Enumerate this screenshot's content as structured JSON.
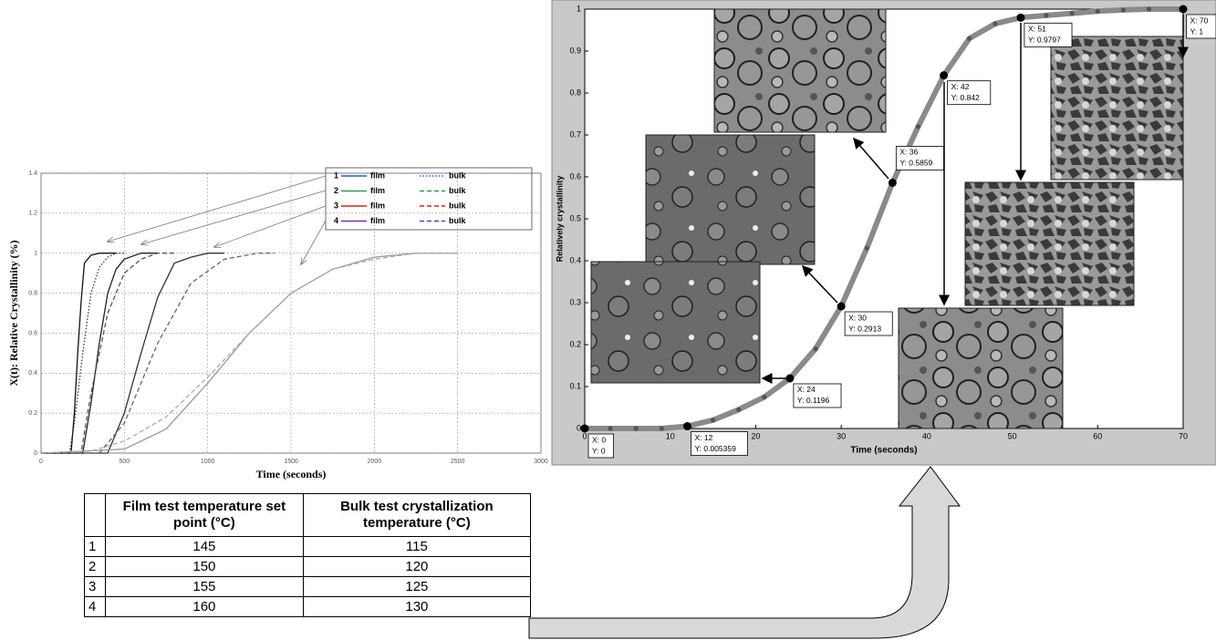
{
  "chart_data": [
    {
      "type": "line",
      "xlabel": "Time (seconds)",
      "ylabel": "X(t): Relative Crystallinity (%)",
      "xlim": [
        0,
        3000
      ],
      "ylim": [
        0,
        1.4
      ],
      "xticks": [
        0,
        500,
        1000,
        1500,
        2000,
        2500,
        3000
      ],
      "yticks": [
        0,
        0.2,
        0.4,
        0.6,
        0.8,
        1,
        1.2,
        1.4
      ],
      "grid": true,
      "legend": "top-right",
      "series": [
        {
          "name": "film",
          "group": "1",
          "color": "#1f5fbf",
          "line_color": "#111111",
          "dash": "solid",
          "x": [
            0,
            180,
            200,
            220,
            240,
            260,
            280,
            300,
            350,
            400,
            450
          ],
          "values": [
            0,
            0,
            0.2,
            0.5,
            0.75,
            0.95,
            0.97,
            0.99,
            1,
            1,
            1
          ]
        },
        {
          "name": "bulk",
          "group": "1",
          "color": "#1f5fbf",
          "line_color": "#333333",
          "dash": "dotted",
          "x": [
            0,
            170,
            200,
            250,
            300,
            350,
            400,
            450,
            500
          ],
          "values": [
            0,
            0,
            0.15,
            0.5,
            0.8,
            0.93,
            0.98,
            1,
            1
          ]
        },
        {
          "name": "film",
          "group": "2",
          "color": "#1fa34a",
          "line_color": "#222222",
          "dash": "solid",
          "x": [
            0,
            250,
            300,
            350,
            400,
            450,
            500,
            600,
            700
          ],
          "values": [
            0,
            0,
            0.25,
            0.55,
            0.8,
            0.92,
            0.97,
            1,
            1
          ]
        },
        {
          "name": "bulk",
          "group": "2",
          "color": "#1fa34a",
          "line_color": "#555555",
          "dash": "dashed",
          "x": [
            0,
            240,
            300,
            400,
            500,
            600,
            700,
            800
          ],
          "values": [
            0,
            0,
            0.3,
            0.7,
            0.9,
            0.97,
            1,
            1
          ]
        },
        {
          "name": "film",
          "group": "3",
          "color": "#e0201b",
          "line_color": "#333333",
          "dash": "solid",
          "x": [
            0,
            400,
            500,
            600,
            700,
            800,
            900,
            1000,
            1100
          ],
          "values": [
            0,
            0,
            0.2,
            0.5,
            0.78,
            0.95,
            0.98,
            1,
            1
          ]
        },
        {
          "name": "bulk",
          "group": "3",
          "color": "#e0201b",
          "line_color": "#666666",
          "dash": "dashed",
          "x": [
            0,
            350,
            500,
            700,
            900,
            1100,
            1300,
            1400
          ],
          "values": [
            0,
            0,
            0.15,
            0.55,
            0.85,
            0.97,
            1,
            1
          ]
        },
        {
          "name": "film",
          "group": "4",
          "color": "#7a2fa8",
          "line_color": "#999999",
          "dash": "solid",
          "x": [
            0,
            500,
            750,
            1000,
            1250,
            1500,
            1750,
            2000,
            2250,
            2500
          ],
          "values": [
            0,
            0.02,
            0.12,
            0.35,
            0.6,
            0.8,
            0.92,
            0.98,
            1,
            1
          ]
        },
        {
          "name": "bulk",
          "group": "4",
          "color": "#7a2fa8",
          "line_color": "#aaaaaa",
          "dash": "dashed",
          "x": [
            0,
            300,
            500,
            750,
            1000,
            1250,
            1500,
            1750,
            2000,
            2250,
            2500
          ],
          "values": [
            0,
            0.01,
            0.06,
            0.18,
            0.38,
            0.6,
            0.8,
            0.92,
            0.97,
            1,
            1
          ]
        }
      ]
    },
    {
      "type": "line",
      "xlabel": "Time (seconds)",
      "ylabel": "Relatively crystallinity",
      "xlim": [
        0,
        70
      ],
      "ylim": [
        0,
        1
      ],
      "xticks": [
        0,
        10,
        20,
        30,
        40,
        50,
        60,
        70
      ],
      "yticks": [
        0,
        0.1,
        0.2,
        0.3,
        0.4,
        0.5,
        0.6,
        0.7,
        0.8,
        0.9,
        1
      ],
      "color": "#8a8a8a",
      "marker_color": "#555555",
      "x": [
        0,
        3,
        6,
        9,
        12,
        15,
        18,
        21,
        24,
        27,
        30,
        33,
        36,
        39,
        42,
        45,
        48,
        51,
        54,
        57,
        60,
        63,
        66,
        70
      ],
      "values": [
        0,
        0,
        0,
        0,
        0.005359,
        0.02,
        0.045,
        0.075,
        0.1196,
        0.19,
        0.2913,
        0.43,
        0.5859,
        0.72,
        0.842,
        0.93,
        0.965,
        0.9797,
        0.985,
        0.99,
        0.995,
        0.998,
        1,
        1
      ],
      "annotations": [
        {
          "x": 0,
          "y": 0,
          "x_label": "X: 0",
          "y_label": "Y: 0"
        },
        {
          "x": 12,
          "y": 0.005359,
          "x_label": "X: 12",
          "y_label": "Y: 0.005359"
        },
        {
          "x": 24,
          "y": 0.1196,
          "x_label": "X: 24",
          "y_label": "Y: 0.1196"
        },
        {
          "x": 30,
          "y": 0.2913,
          "x_label": "X: 30",
          "y_label": "Y: 0.2913"
        },
        {
          "x": 36,
          "y": 0.5859,
          "x_label": "X: 36",
          "y_label": "Y: 0.5859"
        },
        {
          "x": 42,
          "y": 0.842,
          "x_label": "X: 42",
          "y_label": "Y: 0.842"
        },
        {
          "x": 51,
          "y": 0.9797,
          "x_label": "X: 51",
          "y_label": "Y: 0.9797"
        },
        {
          "x": 70,
          "y": 1,
          "x_label": "X: 70",
          "y_label": "Y: 1"
        }
      ]
    }
  ],
  "table": {
    "header": [
      "Film test temperature set point (°C)",
      "Bulk test crystallization temperature (°C)"
    ],
    "rows": [
      [
        "1",
        "145",
        "115"
      ],
      [
        "2",
        "150",
        "120"
      ],
      [
        "3",
        "155",
        "125"
      ],
      [
        "4",
        "160",
        "130"
      ]
    ]
  }
}
